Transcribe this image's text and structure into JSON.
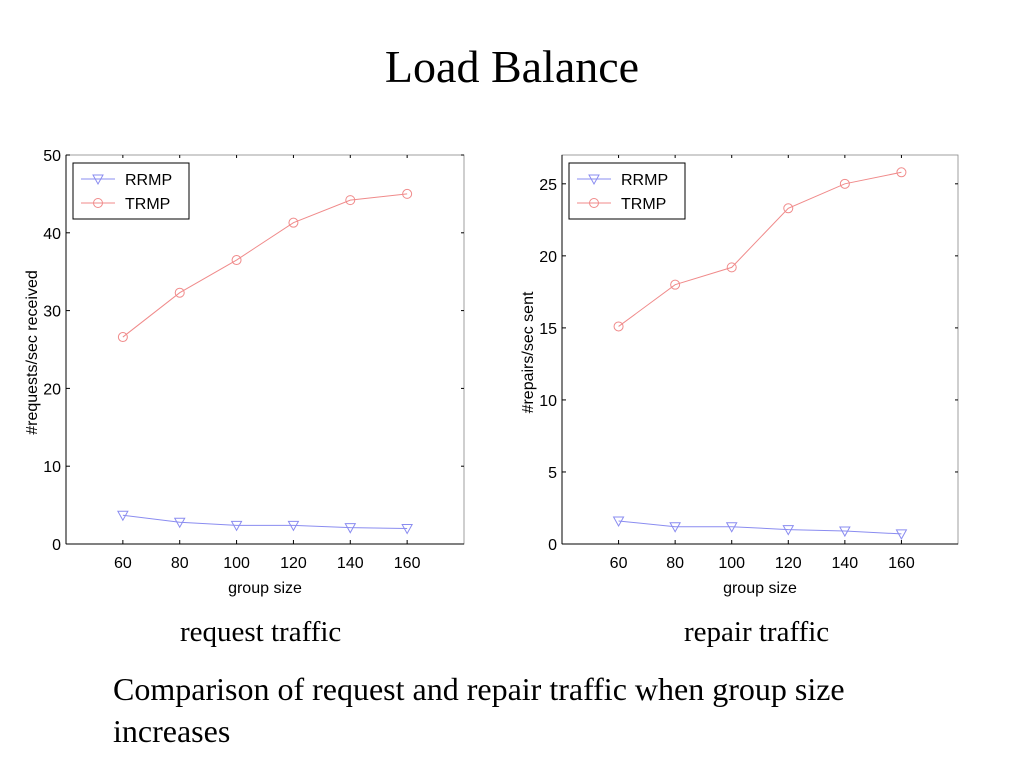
{
  "slide": {
    "title": "Load Balance",
    "caption_left": "request traffic",
    "caption_right": "repair traffic",
    "body": "Comparison of request and repair traffic when group size increases"
  },
  "colors": {
    "RRMP": "#8a8cf0",
    "TRMP": "#f08a8a",
    "axis": "#000000"
  },
  "chart_data": [
    {
      "type": "line",
      "title": "",
      "xlabel": "group size",
      "ylabel": "#requests/sec received",
      "xlim": [
        40,
        180
      ],
      "ylim": [
        0,
        50
      ],
      "x_ticks": [
        60,
        80,
        100,
        120,
        140,
        160
      ],
      "y_ticks": [
        0,
        10,
        20,
        30,
        40,
        50
      ],
      "legend_position": "top-left",
      "x": [
        60,
        80,
        100,
        120,
        140,
        160
      ],
      "series": [
        {
          "name": "RRMP",
          "marker": "triangle-down",
          "values": [
            3.7,
            2.8,
            2.4,
            2.4,
            2.1,
            2.0
          ]
        },
        {
          "name": "TRMP",
          "marker": "circle",
          "values": [
            26.6,
            32.3,
            36.5,
            41.3,
            44.2,
            45.0
          ]
        }
      ]
    },
    {
      "type": "line",
      "title": "",
      "xlabel": "group size",
      "ylabel": "#repairs/sec sent",
      "xlim": [
        40,
        180
      ],
      "ylim": [
        0,
        27
      ],
      "x_ticks": [
        60,
        80,
        100,
        120,
        140,
        160
      ],
      "y_ticks": [
        0,
        5,
        10,
        15,
        20,
        25
      ],
      "legend_position": "top-left",
      "x": [
        60,
        80,
        100,
        120,
        140,
        160
      ],
      "series": [
        {
          "name": "RRMP",
          "marker": "triangle-down",
          "values": [
            1.6,
            1.2,
            1.2,
            1.0,
            0.9,
            0.7
          ]
        },
        {
          "name": "TRMP",
          "marker": "circle",
          "values": [
            15.1,
            18.0,
            19.2,
            23.3,
            25.0,
            25.8
          ]
        }
      ]
    }
  ]
}
